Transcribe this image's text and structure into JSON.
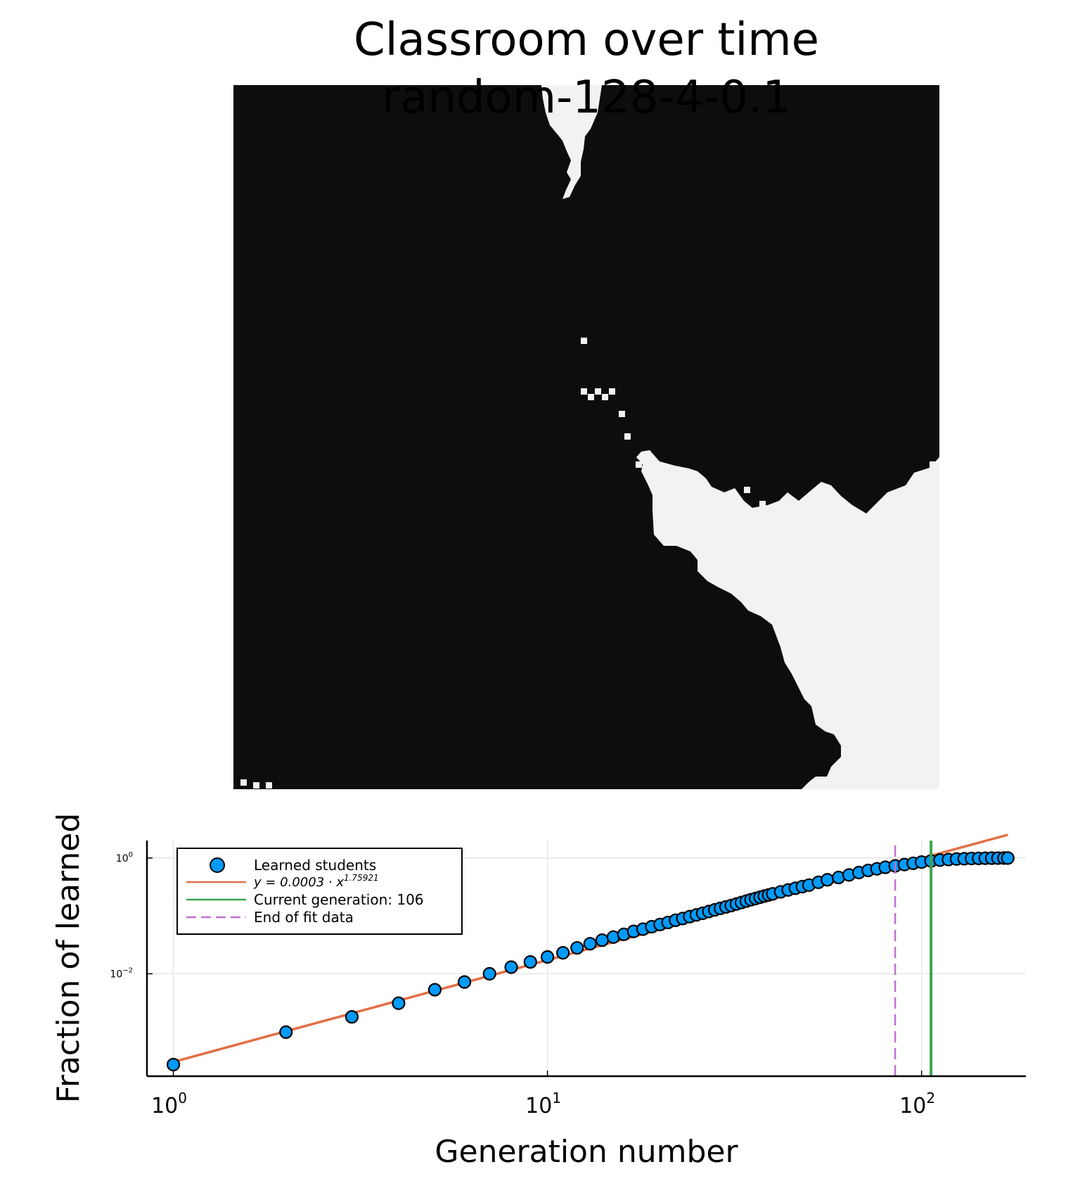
{
  "figure": {
    "title": "Classroom over time",
    "subtitle": "random-128-4-0.1",
    "colors": {
      "background": "#ffffff",
      "heatmap_dark": "#0d0d0d",
      "heatmap_light": "#f2f2f2",
      "points": "#009af9",
      "fit_line": "#e26f46",
      "current_gen_line": "#3da44d",
      "fit_end_line": "#c271d2",
      "grid": "#e6e6e6"
    }
  },
  "chart_data": [
    {
      "type": "heatmap",
      "title": "Classroom over time",
      "subtitle": "random-128-4-0.1",
      "grid_size": [
        128,
        128
      ],
      "values": "binary state per student: 1 = learned (light), 0 = not learned (dark)",
      "learned_region": "light region in the upper-center and lower-right of the grid",
      "axes_visible": false
    },
    {
      "type": "scatter",
      "xlabel": "Generation number",
      "ylabel": "Fraction of learned",
      "xscale": "log10",
      "yscale": "log10",
      "xlim": [
        0.85,
        190
      ],
      "ylim": [
        0.00017,
        2.0
      ],
      "x_ticks": [
        {
          "value": 1,
          "base": "10",
          "exp": "0"
        },
        {
          "value": 10,
          "base": "10",
          "exp": "1"
        },
        {
          "value": 100,
          "base": "10",
          "exp": "2"
        }
      ],
      "y_ticks": [
        {
          "value": 0.01,
          "base": "10",
          "exp": "−2"
        },
        {
          "value": 1,
          "base": "10",
          "exp": "0"
        }
      ],
      "grid": true,
      "legend_position": "top-left",
      "series": [
        {
          "name": "Learned students",
          "kind": "scatter",
          "x": [
            1,
            2,
            3,
            4,
            5,
            6,
            7,
            8,
            9,
            10,
            11,
            12,
            13,
            14,
            15,
            16,
            17,
            18,
            19,
            20,
            21,
            22,
            23,
            24,
            25,
            26,
            27,
            28,
            29,
            30,
            31,
            32,
            33,
            34,
            35,
            36,
            37,
            38,
            39,
            40,
            42,
            44,
            46,
            48,
            50,
            53,
            56,
            60,
            64,
            68,
            72,
            76,
            80,
            85,
            90,
            95,
            100,
            106,
            112,
            118,
            124,
            130,
            136,
            142,
            148,
            154,
            160,
            166,
            170
          ],
          "y": [
            0.00027,
            0.00098,
            0.0018,
            0.0031,
            0.0053,
            0.0072,
            0.01,
            0.013,
            0.016,
            0.0195,
            0.023,
            0.028,
            0.033,
            0.038,
            0.043,
            0.048,
            0.054,
            0.059,
            0.065,
            0.071,
            0.077,
            0.084,
            0.09,
            0.097,
            0.104,
            0.111,
            0.119,
            0.127,
            0.135,
            0.143,
            0.151,
            0.16,
            0.17,
            0.18,
            0.19,
            0.2,
            0.21,
            0.22,
            0.23,
            0.24,
            0.26,
            0.28,
            0.3,
            0.32,
            0.34,
            0.38,
            0.42,
            0.46,
            0.51,
            0.56,
            0.61,
            0.65,
            0.69,
            0.73,
            0.77,
            0.81,
            0.85,
            0.89,
            0.92,
            0.94,
            0.96,
            0.97,
            0.98,
            0.985,
            0.99,
            0.993,
            0.995,
            0.997,
            0.998
          ]
        },
        {
          "name": "y = 0.0003 · x^1.75921",
          "name_parts": {
            "prefix": "y = 0.0003 · x",
            "exponent": "1.75921"
          },
          "kind": "line",
          "coefficient": 0.0003,
          "exponent": 1.75921,
          "x_range": [
            1,
            170
          ]
        },
        {
          "name": "Current generation: 106",
          "kind": "vline",
          "x": 106
        },
        {
          "name": "End of fit data",
          "kind": "vline",
          "style": "dashed",
          "x": 85
        }
      ]
    }
  ]
}
